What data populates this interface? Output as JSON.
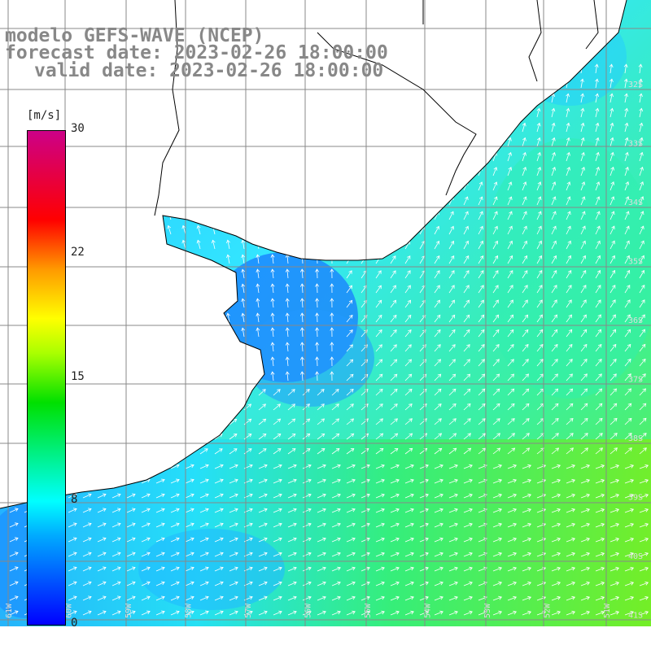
{
  "header": {
    "line1": "modelo GEFS-WAVE (NCEP)",
    "line2": "forecast date: 2023-02-26 18:00:00",
    "line3": "valid date: 2023-02-26 18:00:00"
  },
  "colorbar": {
    "unit": "[m/s]",
    "ticks": [
      "30",
      "22",
      "15",
      "8",
      "0"
    ]
  },
  "grid": {
    "lat_labels": [
      "32S",
      "33S",
      "34S",
      "35S",
      "36S",
      "37S",
      "38S",
      "39S",
      "40S",
      "41S"
    ],
    "lon_labels": [
      "61W",
      "60W",
      "59W",
      "58W",
      "57W",
      "56W",
      "55W",
      "54W",
      "53W",
      "52W",
      "51W"
    ]
  },
  "colors": {
    "land": "#ffffff",
    "coast": "#000000",
    "grid": "#888888",
    "arrows": "#ffffff",
    "title": "#888888"
  }
}
